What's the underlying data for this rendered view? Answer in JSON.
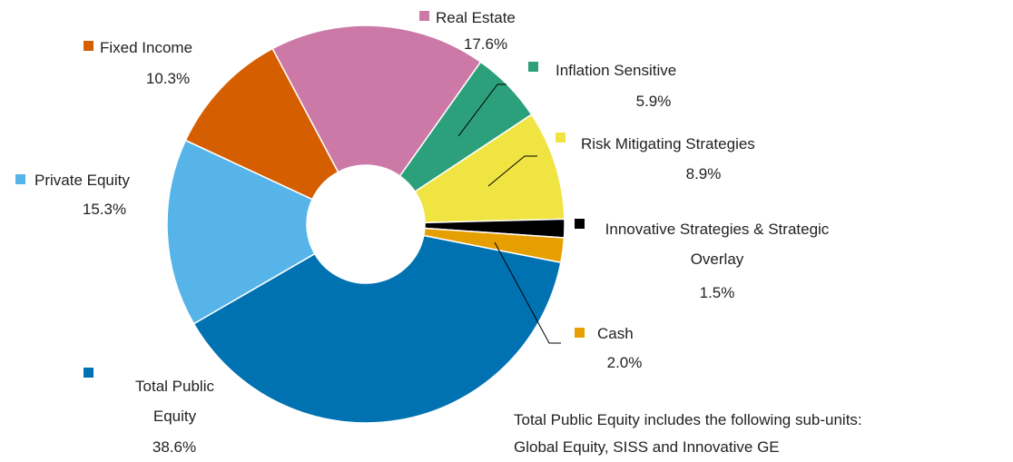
{
  "chart_data": {
    "type": "donut",
    "categories": [
      "Real Estate",
      "Inflation Sensitive",
      "Risk Mitigating Strategies",
      "Innovative Strategies & Strategic Overlay",
      "Cash",
      "Total Public Equity",
      "Private Equity",
      "Fixed Income"
    ],
    "values": [
      17.6,
      5.9,
      8.9,
      1.5,
      2.0,
      38.6,
      15.3,
      10.3
    ],
    "value_labels": [
      "17.6%",
      "5.9%",
      "8.9%",
      "1.5%",
      "2.0%",
      "38.6%",
      "15.3%",
      "10.3%"
    ],
    "colors": [
      "#cc79a7",
      "#2ca07a",
      "#f0e442",
      "#000000",
      "#e69f00",
      "#0072b2",
      "#56b4e9",
      "#d55e00"
    ],
    "annotation": [
      "Total Public Equity includes the following sub-units:",
      "Global Equity, SISS and Innovative GE"
    ]
  }
}
